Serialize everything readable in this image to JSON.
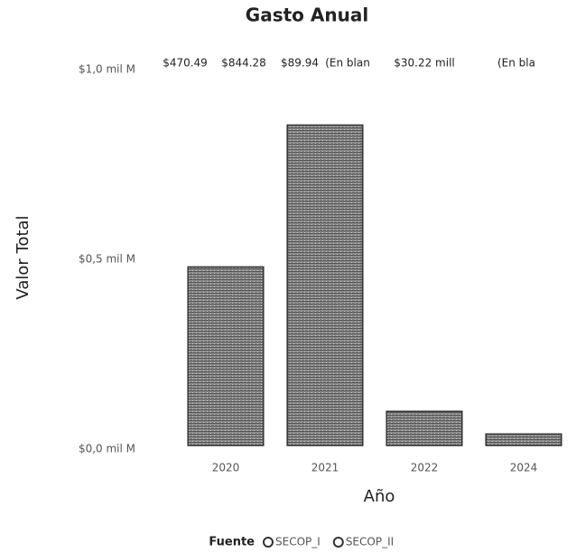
{
  "chart_data": {
    "type": "bar",
    "title": "Gasto Anual",
    "x_label": "Año",
    "y_label": "Valor Total",
    "categories": [
      "2020",
      "2021",
      "2022",
      "2024"
    ],
    "values": [
      470.49,
      844.28,
      89.94,
      30.22
    ],
    "value_labels": [
      "$470.49",
      "$844.28",
      "$89.94",
      "$30.22 mill"
    ],
    "annotations": [
      "(En blan",
      "(En bla"
    ],
    "color": "#7a7a7a",
    "ylim": [
      0,
      1000
    ],
    "yticks": [
      {
        "value": 0,
        "label": "$0,0 mil M"
      },
      {
        "value": 500,
        "label": "$0,5 mil M"
      },
      {
        "value": 1000,
        "label": "$1,0 mil M"
      }
    ],
    "legend_title": "Fuente",
    "legend_items": [
      "SECOP_I",
      "SECOP_II"
    ]
  }
}
